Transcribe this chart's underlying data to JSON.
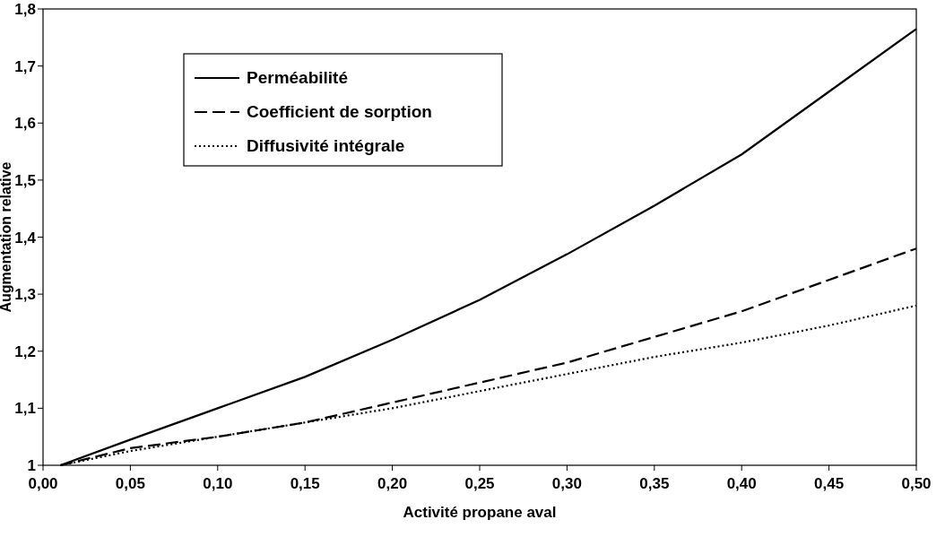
{
  "chart_data": {
    "type": "line",
    "xlabel": "Activité propane aval",
    "ylabel": "Augmentation relative",
    "x": [
      0.01,
      0.05,
      0.1,
      0.15,
      0.2,
      0.25,
      0.3,
      0.35,
      0.4,
      0.45,
      0.5
    ],
    "series": [
      {
        "name": "Perméabilité",
        "color": "#000000",
        "line_style": "solid",
        "values": [
          1.0,
          1.045,
          1.1,
          1.155,
          1.22,
          1.29,
          1.37,
          1.455,
          1.545,
          1.655,
          1.765
        ]
      },
      {
        "name": "Coefficient de sorption",
        "color": "#000000",
        "line_style": "dashed",
        "values": [
          1.0,
          1.03,
          1.05,
          1.075,
          1.11,
          1.145,
          1.18,
          1.225,
          1.27,
          1.325,
          1.38
        ]
      },
      {
        "name": "Diffusivité intégrale",
        "color": "#000000",
        "line_style": "dotted",
        "values": [
          1.0,
          1.025,
          1.05,
          1.075,
          1.1,
          1.13,
          1.16,
          1.19,
          1.215,
          1.245,
          1.28
        ]
      }
    ],
    "xlim": [
      0,
      0.5
    ],
    "ylim": [
      1,
      1.8
    ],
    "xticks": [
      {
        "value": 0,
        "label": "0,00"
      },
      {
        "value": 0.05,
        "label": "0,05"
      },
      {
        "value": 0.1,
        "label": "0,10"
      },
      {
        "value": 0.15,
        "label": "0,15"
      },
      {
        "value": 0.2,
        "label": "0,20"
      },
      {
        "value": 0.25,
        "label": "0,25"
      },
      {
        "value": 0.3,
        "label": "0,30"
      },
      {
        "value": 0.35,
        "label": "0,35"
      },
      {
        "value": 0.4,
        "label": "0,40"
      },
      {
        "value": 0.45,
        "label": "0,45"
      },
      {
        "value": 0.5,
        "label": "0,50"
      }
    ],
    "yticks": [
      1,
      {
        "value": 1.1,
        "label": "1,1"
      },
      {
        "value": 1.2,
        "label": "1,2"
      },
      {
        "value": 1.3,
        "label": "1,3"
      },
      {
        "value": 1.4,
        "label": "1,4"
      },
      {
        "value": 1.5,
        "label": "1,5"
      },
      {
        "value": 1.6,
        "label": "1,6"
      },
      {
        "value": 1.7,
        "label": "1,7"
      },
      {
        "value": 1.8,
        "label": "1,8"
      }
    ],
    "grid": false,
    "legend": "top left",
    "marker": "none"
  }
}
